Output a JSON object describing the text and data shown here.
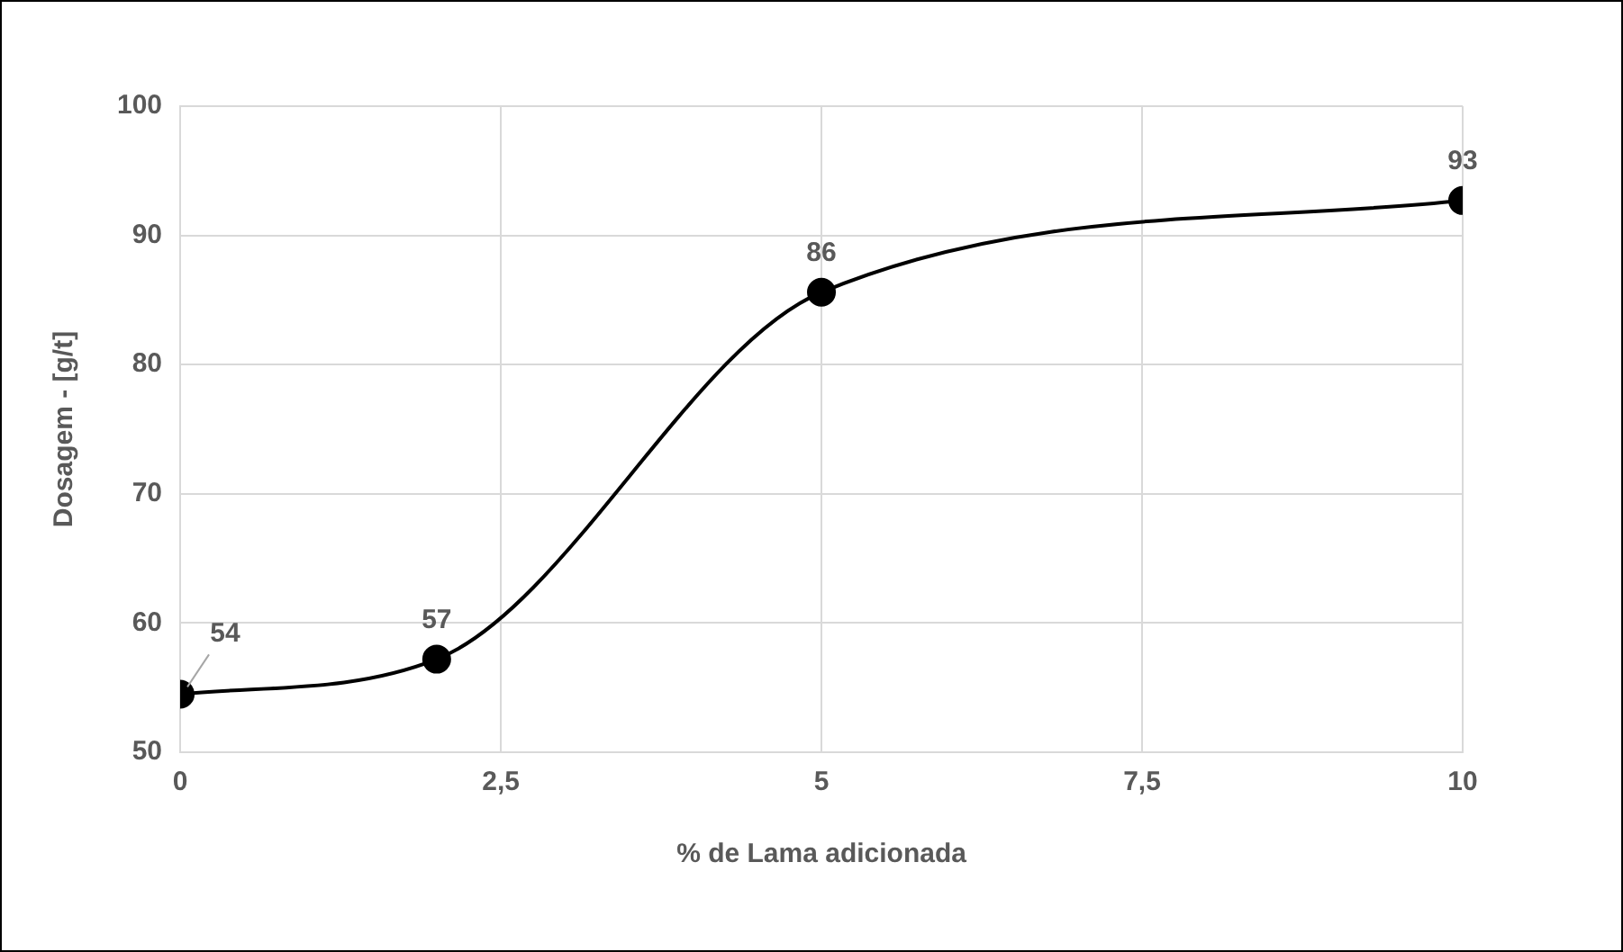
{
  "chart_data": {
    "type": "line",
    "xlabel": "% de Lama adicionada",
    "ylabel": "Dosagem - [g/t]",
    "x": [
      0,
      2,
      5,
      10
    ],
    "series": [
      {
        "color": "#000000",
        "values": [
          54.5,
          57.2,
          85.6,
          92.7
        ],
        "value_labels": [
          "54",
          "57",
          "86",
          "93"
        ]
      }
    ],
    "xlim": [
      0,
      10
    ],
    "xticks": [
      0,
      {
        "value": 2.5,
        "label": "2,5"
      },
      5,
      {
        "value": 7.5,
        "label": "7,5"
      },
      10
    ],
    "ylim": [
      50,
      100
    ],
    "yticks": [
      50,
      60,
      70,
      80,
      90,
      100
    ],
    "grid": true,
    "legend": false,
    "marker": "circle",
    "line_style": "solid"
  }
}
